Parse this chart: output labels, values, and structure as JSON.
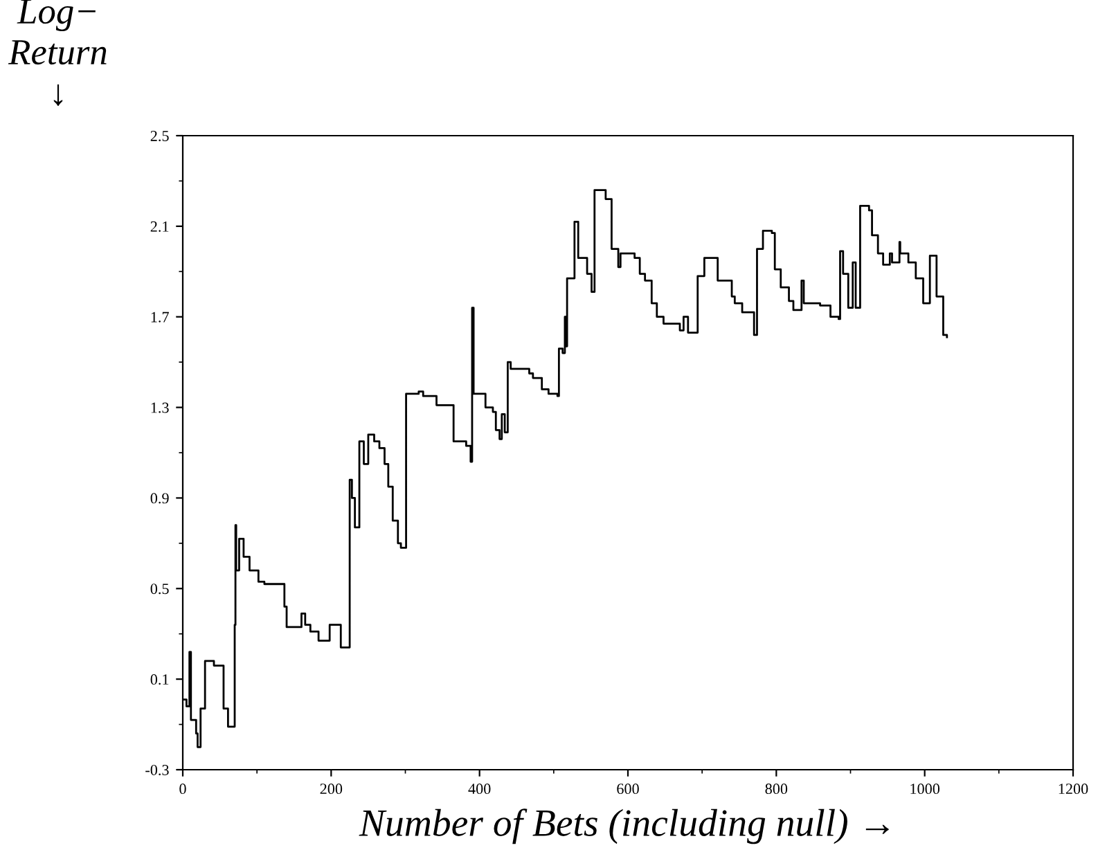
{
  "chart_data": {
    "type": "step",
    "xlabel": "Number of Bets (including null) →",
    "ylabel": "Log−\nReturn\n↓",
    "xlim": [
      0,
      1200
    ],
    "xticks": [
      0,
      200,
      400,
      600,
      800,
      1000,
      1200
    ],
    "ylim": [
      -0.3,
      2.5
    ],
    "yticks": [
      {
        "value": -0.3,
        "label": "-0.3"
      },
      0.1,
      0.5,
      0.9,
      1.3,
      1.7,
      2.1,
      2.5
    ],
    "grid": false,
    "legend": false,
    "marker": "none",
    "line_style": "solid",
    "series": [
      {
        "color": "#000000",
        "x": [
          0,
          5,
          9,
          11,
          18,
          20,
          24,
          30,
          42,
          55,
          61,
          70,
          71,
          72,
          76,
          82,
          90,
          102,
          110,
          137,
          140,
          146,
          160,
          165,
          172,
          183,
          198,
          213,
          224,
          225,
          228,
          232,
          238,
          244,
          250,
          258,
          265,
          272,
          277,
          283,
          290,
          294,
          301,
          318,
          324,
          342,
          365,
          382,
          388,
          390,
          392,
          404,
          408,
          418,
          422,
          427,
          430,
          434,
          438,
          442,
          467,
          472,
          484,
          493,
          505,
          507,
          512,
          515,
          517,
          518,
          526,
          528,
          533,
          545,
          551,
          555,
          570,
          578,
          587,
          590,
          609,
          616,
          623,
          632,
          639,
          648,
          670,
          675,
          681,
          694,
          703,
          721,
          740,
          744,
          754,
          770,
          774,
          782,
          794,
          798,
          806,
          817,
          823,
          834,
          837,
          859,
          873,
          884,
          886,
          890,
          897,
          903,
          907,
          913,
          925,
          929,
          937,
          944,
          953,
          956,
          966,
          967,
          978,
          988,
          998,
          1007,
          1016,
          1025,
          1030
        ],
        "values": [
          0.01,
          -0.02,
          0.22,
          -0.08,
          -0.14,
          -0.2,
          -0.03,
          0.18,
          0.16,
          -0.03,
          -0.11,
          0.34,
          0.78,
          0.58,
          0.72,
          0.64,
          0.58,
          0.53,
          0.52,
          0.42,
          0.33,
          0.33,
          0.39,
          0.34,
          0.31,
          0.27,
          0.34,
          0.24,
          0.24,
          0.98,
          0.9,
          0.77,
          1.15,
          1.05,
          1.18,
          1.15,
          1.12,
          1.05,
          0.95,
          0.8,
          0.7,
          0.68,
          1.36,
          1.37,
          1.35,
          1.31,
          1.15,
          1.13,
          1.06,
          1.74,
          1.36,
          1.36,
          1.3,
          1.28,
          1.2,
          1.16,
          1.27,
          1.19,
          1.5,
          1.47,
          1.45,
          1.43,
          1.38,
          1.36,
          1.35,
          1.56,
          1.54,
          1.7,
          1.57,
          1.87,
          1.87,
          2.12,
          1.96,
          1.89,
          1.81,
          2.26,
          2.22,
          2.0,
          1.92,
          1.98,
          1.96,
          1.89,
          1.86,
          1.76,
          1.7,
          1.67,
          1.64,
          1.7,
          1.63,
          1.88,
          1.96,
          1.86,
          1.79,
          1.76,
          1.72,
          1.62,
          2.0,
          2.08,
          2.07,
          1.91,
          1.83,
          1.77,
          1.73,
          1.86,
          1.76,
          1.75,
          1.7,
          1.69,
          1.99,
          1.89,
          1.74,
          1.94,
          1.74,
          2.19,
          2.17,
          2.06,
          1.98,
          1.93,
          1.98,
          1.94,
          2.03,
          1.98,
          1.94,
          1.87,
          1.76,
          1.97,
          1.79,
          1.62,
          1.61
        ]
      }
    ]
  }
}
